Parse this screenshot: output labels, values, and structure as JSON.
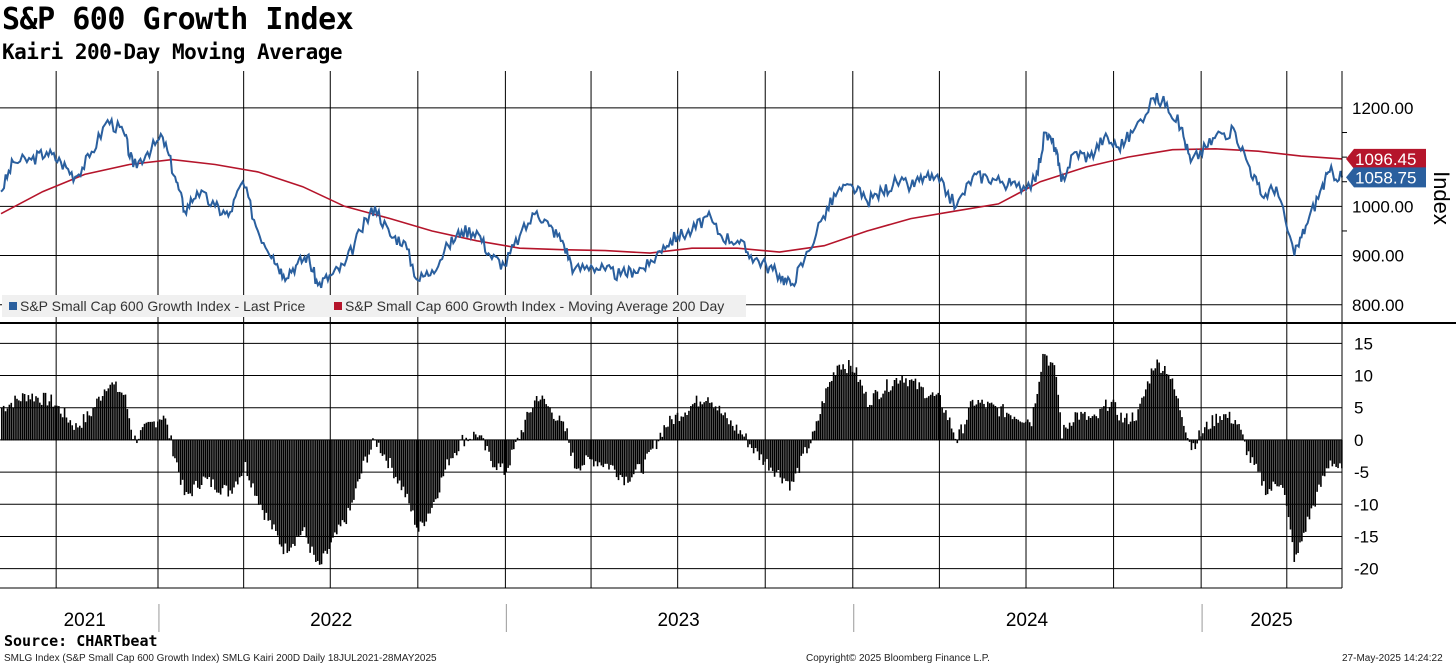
{
  "title": "S&P 600 Growth Index",
  "subtitle": "Kairi 200-Day Moving Average",
  "source": "Source: CHARTbeat",
  "footer": {
    "left": "SMLG Index (S&P Small Cap 600 Growth Index) SMLG Kairi 200D  Daily 18JUL2021-28MAY2025",
    "center": "Copyright© 2025 Bloomberg Finance L.P.",
    "right": "27-May-2025 14:24:22"
  },
  "colors": {
    "price": "#2a5f9e",
    "ma": "#b5152b",
    "kairi": "#000000",
    "grid": "#000000"
  },
  "chart_data": [
    {
      "type": "line",
      "ylabel": "Index",
      "yticks": [
        "1200.00",
        "1000.00",
        "900.00",
        "800.00"
      ],
      "ytick_values": [
        1200,
        1000,
        900,
        800
      ],
      "ylim": [
        765,
        1275
      ],
      "xlim": [
        "2021-07-18",
        "2025-05-28"
      ],
      "x_labels": [
        "2021",
        "2022",
        "2023",
        "2024",
        "2025"
      ],
      "legend_placement": "bottom-left",
      "last_value_labels": [
        {
          "text": "1096.45",
          "series": "ma"
        },
        {
          "text": "1058.75",
          "series": "price"
        }
      ],
      "series": [
        {
          "name": "S&P Small Cap 600 Growth Index - Last Price",
          "key": "price",
          "points": [
            [
              "2021-07-19",
              1030
            ],
            [
              "2021-08-01",
              1090
            ],
            [
              "2021-08-20",
              1095
            ],
            [
              "2021-09-05",
              1110
            ],
            [
              "2021-09-20",
              1090
            ],
            [
              "2021-10-05",
              1060
            ],
            [
              "2021-10-20",
              1100
            ],
            [
              "2021-11-08",
              1175
            ],
            [
              "2021-11-25",
              1150
            ],
            [
              "2021-12-05",
              1080
            ],
            [
              "2021-12-20",
              1110
            ],
            [
              "2022-01-05",
              1140
            ],
            [
              "2022-01-18",
              1060
            ],
            [
              "2022-01-28",
              990
            ],
            [
              "2022-02-10",
              1030
            ],
            [
              "2022-03-01",
              1000
            ],
            [
              "2022-03-15",
              980
            ],
            [
              "2022-03-30",
              1050
            ],
            [
              "2022-04-15",
              950
            ],
            [
              "2022-05-01",
              900
            ],
            [
              "2022-05-12",
              860
            ],
            [
              "2022-05-25",
              880
            ],
            [
              "2022-06-06",
              900
            ],
            [
              "2022-06-17",
              840
            ],
            [
              "2022-07-01",
              860
            ],
            [
              "2022-07-15",
              880
            ],
            [
              "2022-08-01",
              950
            ],
            [
              "2022-08-16",
              1000
            ],
            [
              "2022-09-01",
              940
            ],
            [
              "2022-09-15",
              930
            ],
            [
              "2022-09-30",
              850
            ],
            [
              "2022-10-15",
              870
            ],
            [
              "2022-11-01",
              920
            ],
            [
              "2022-11-15",
              950
            ],
            [
              "2022-12-01",
              950
            ],
            [
              "2022-12-15",
              900
            ],
            [
              "2022-12-30",
              880
            ],
            [
              "2023-01-15",
              940
            ],
            [
              "2023-02-02",
              990
            ],
            [
              "2023-02-15",
              960
            ],
            [
              "2023-03-01",
              930
            ],
            [
              "2023-03-13",
              870
            ],
            [
              "2023-03-31",
              880
            ],
            [
              "2023-04-15",
              870
            ],
            [
              "2023-05-01",
              860
            ],
            [
              "2023-05-15",
              870
            ],
            [
              "2023-05-31",
              880
            ],
            [
              "2023-06-15",
              920
            ],
            [
              "2023-06-30",
              940
            ],
            [
              "2023-07-15",
              950
            ],
            [
              "2023-07-31",
              980
            ],
            [
              "2023-08-15",
              940
            ],
            [
              "2023-09-01",
              930
            ],
            [
              "2023-09-15",
              900
            ],
            [
              "2023-10-01",
              880
            ],
            [
              "2023-10-15",
              860
            ],
            [
              "2023-10-27",
              840
            ],
            [
              "2023-11-10",
              890
            ],
            [
              "2023-11-30",
              980
            ],
            [
              "2023-12-15",
              1030
            ],
            [
              "2023-12-31",
              1040
            ],
            [
              "2024-01-15",
              1010
            ],
            [
              "2024-01-31",
              1030
            ],
            [
              "2024-02-15",
              1050
            ],
            [
              "2024-03-01",
              1040
            ],
            [
              "2024-03-15",
              1060
            ],
            [
              "2024-03-31",
              1050
            ],
            [
              "2024-04-18",
              1000
            ],
            [
              "2024-05-05",
              1060
            ],
            [
              "2024-05-20",
              1060
            ],
            [
              "2024-06-05",
              1050
            ],
            [
              "2024-06-20",
              1040
            ],
            [
              "2024-07-10",
              1050
            ],
            [
              "2024-07-20",
              1150
            ],
            [
              "2024-07-31",
              1120
            ],
            [
              "2024-08-06",
              1050
            ],
            [
              "2024-08-20",
              1110
            ],
            [
              "2024-09-05",
              1100
            ],
            [
              "2024-09-20",
              1140
            ],
            [
              "2024-10-05",
              1120
            ],
            [
              "2024-10-20",
              1150
            ],
            [
              "2024-11-11",
              1220
            ],
            [
              "2024-11-25",
              1210
            ],
            [
              "2024-12-10",
              1160
            ],
            [
              "2024-12-20",
              1090
            ],
            [
              "2025-01-05",
              1120
            ],
            [
              "2025-01-20",
              1150
            ],
            [
              "2025-02-05",
              1150
            ],
            [
              "2025-02-20",
              1080
            ],
            [
              "2025-03-05",
              1020
            ],
            [
              "2025-03-20",
              1040
            ],
            [
              "2025-04-08",
              900
            ],
            [
              "2025-04-20",
              960
            ],
            [
              "2025-05-05",
              1030
            ],
            [
              "2025-05-15",
              1070
            ],
            [
              "2025-05-28",
              1058.75
            ]
          ]
        },
        {
          "name": "S&P Small Cap 600 Growth Index - Moving Average 200 Day",
          "key": "ma",
          "points": [
            [
              "2021-07-19",
              985
            ],
            [
              "2021-09-01",
              1030
            ],
            [
              "2021-10-15",
              1065
            ],
            [
              "2021-12-01",
              1085
            ],
            [
              "2022-01-15",
              1095
            ],
            [
              "2022-03-01",
              1085
            ],
            [
              "2022-04-15",
              1070
            ],
            [
              "2022-06-01",
              1040
            ],
            [
              "2022-07-15",
              1000
            ],
            [
              "2022-09-01",
              975
            ],
            [
              "2022-10-15",
              950
            ],
            [
              "2022-12-01",
              930
            ],
            [
              "2023-01-15",
              915
            ],
            [
              "2023-03-01",
              912
            ],
            [
              "2023-04-15",
              910
            ],
            [
              "2023-06-01",
              905
            ],
            [
              "2023-07-15",
              915
            ],
            [
              "2023-09-01",
              915
            ],
            [
              "2023-10-15",
              907
            ],
            [
              "2023-12-01",
              920
            ],
            [
              "2024-01-15",
              950
            ],
            [
              "2024-03-01",
              975
            ],
            [
              "2024-04-15",
              990
            ],
            [
              "2024-06-01",
              1005
            ],
            [
              "2024-07-15",
              1050
            ],
            [
              "2024-09-01",
              1080
            ],
            [
              "2024-10-15",
              1100
            ],
            [
              "2024-12-01",
              1115
            ],
            [
              "2025-01-15",
              1117
            ],
            [
              "2025-03-01",
              1112
            ],
            [
              "2025-04-15",
              1102
            ],
            [
              "2025-05-28",
              1096.45
            ]
          ]
        }
      ]
    },
    {
      "type": "bar",
      "yticks": [
        "15",
        "10",
        "5",
        "0",
        "-5",
        "-10",
        "-15",
        "-20"
      ],
      "ytick_values": [
        15,
        10,
        5,
        0,
        -5,
        -10,
        -15,
        -20
      ],
      "ylim": [
        -23,
        18
      ],
      "series": [
        {
          "name": "Kairi 200D",
          "key": "kairi",
          "points": [
            [
              "2021-07-19",
              5
            ],
            [
              "2021-08-15",
              7
            ],
            [
              "2021-09-10",
              6
            ],
            [
              "2021-10-05",
              2
            ],
            [
              "2021-10-20",
              4
            ],
            [
              "2021-11-08",
              9
            ],
            [
              "2021-11-25",
              7
            ],
            [
              "2021-12-05",
              0
            ],
            [
              "2021-12-20",
              2
            ],
            [
              "2022-01-05",
              4
            ],
            [
              "2022-01-18",
              -3
            ],
            [
              "2022-01-28",
              -9
            ],
            [
              "2022-02-15",
              -6
            ],
            [
              "2022-03-15",
              -8
            ],
            [
              "2022-04-01",
              -4
            ],
            [
              "2022-04-20",
              -11
            ],
            [
              "2022-05-12",
              -17
            ],
            [
              "2022-06-01",
              -14
            ],
            [
              "2022-06-17",
              -20
            ],
            [
              "2022-07-01",
              -16
            ],
            [
              "2022-07-20",
              -11
            ],
            [
              "2022-08-05",
              -3
            ],
            [
              "2022-08-16",
              0
            ],
            [
              "2022-09-01",
              -4
            ],
            [
              "2022-09-15",
              -8
            ],
            [
              "2022-09-30",
              -14
            ],
            [
              "2022-10-15",
              -10
            ],
            [
              "2022-11-01",
              -3
            ],
            [
              "2022-11-15",
              0
            ],
            [
              "2022-12-01",
              1
            ],
            [
              "2022-12-15",
              -3
            ],
            [
              "2022-12-30",
              -5
            ],
            [
              "2023-01-15",
              1
            ],
            [
              "2023-02-02",
              7
            ],
            [
              "2023-02-20",
              4
            ],
            [
              "2023-03-05",
              1
            ],
            [
              "2023-03-13",
              -4
            ],
            [
              "2023-04-01",
              -3
            ],
            [
              "2023-04-20",
              -4
            ],
            [
              "2023-05-05",
              -6
            ],
            [
              "2023-05-25",
              -4
            ],
            [
              "2023-06-15",
              2
            ],
            [
              "2023-07-01",
              4
            ],
            [
              "2023-07-20",
              6
            ],
            [
              "2023-07-31",
              7
            ],
            [
              "2023-08-20",
              3
            ],
            [
              "2023-09-05",
              1
            ],
            [
              "2023-09-20",
              -2
            ],
            [
              "2023-10-05",
              -4
            ],
            [
              "2023-10-27",
              -7
            ],
            [
              "2023-11-10",
              -2
            ],
            [
              "2023-11-20",
              1
            ],
            [
              "2023-12-01",
              7
            ],
            [
              "2023-12-15",
              12
            ],
            [
              "2024-01-01",
              11
            ],
            [
              "2024-01-15",
              6
            ],
            [
              "2024-02-01",
              8
            ],
            [
              "2024-02-20",
              10
            ],
            [
              "2024-03-10",
              8
            ],
            [
              "2024-04-01",
              6
            ],
            [
              "2024-04-18",
              0
            ],
            [
              "2024-05-05",
              6
            ],
            [
              "2024-05-25",
              5
            ],
            [
              "2024-06-15",
              4
            ],
            [
              "2024-07-05",
              3
            ],
            [
              "2024-07-18",
              14
            ],
            [
              "2024-07-31",
              10
            ],
            [
              "2024-08-06",
              1
            ],
            [
              "2024-08-20",
              4
            ],
            [
              "2024-09-10",
              3
            ],
            [
              "2024-09-25",
              6
            ],
            [
              "2024-10-10",
              3
            ],
            [
              "2024-10-25",
              4
            ],
            [
              "2024-11-11",
              12
            ],
            [
              "2024-11-25",
              11
            ],
            [
              "2024-12-10",
              4
            ],
            [
              "2024-12-20",
              -1
            ],
            [
              "2025-01-05",
              2
            ],
            [
              "2025-01-20",
              4
            ],
            [
              "2025-02-05",
              3
            ],
            [
              "2025-02-20",
              -3
            ],
            [
              "2025-03-10",
              -8
            ],
            [
              "2025-03-25",
              -6
            ],
            [
              "2025-04-08",
              -19
            ],
            [
              "2025-04-20",
              -13
            ],
            [
              "2025-05-05",
              -7
            ],
            [
              "2025-05-15",
              -3
            ],
            [
              "2025-05-28",
              -5
            ]
          ]
        }
      ]
    }
  ]
}
